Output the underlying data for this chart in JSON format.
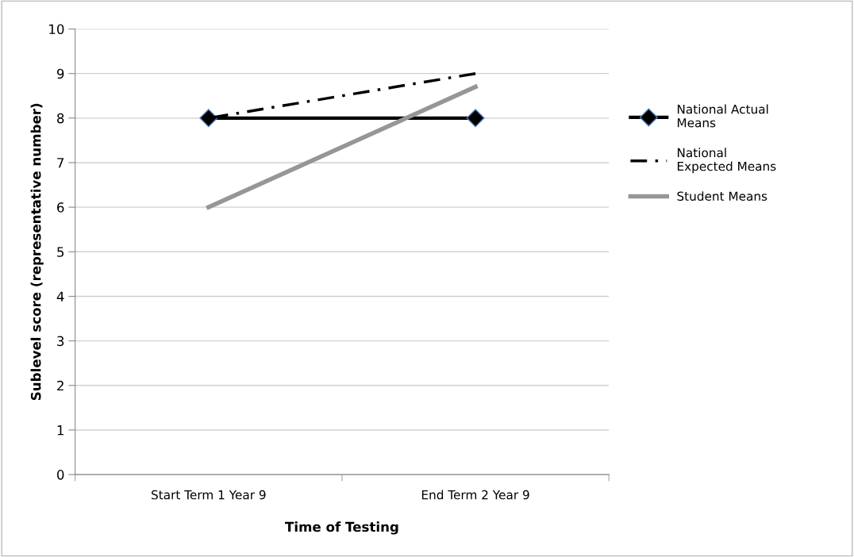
{
  "chart_data": {
    "type": "line",
    "xlabel": "Time of Testing",
    "ylabel": "Sublevel score (representative number)",
    "categories": [
      "Start Term 1 Year 9",
      "End Term 2 Year 9"
    ],
    "series": [
      {
        "name": "National Actual Means",
        "color": "#000000",
        "values": [
          8,
          8
        ],
        "marker": "diamond",
        "line_style": "solid"
      },
      {
        "name": "National Expected Means",
        "color": "#000000",
        "values": [
          8,
          9
        ],
        "marker": "none",
        "line_style": "dashdot"
      },
      {
        "name": "Student Means",
        "color": "#969696",
        "values": [
          6,
          8.7
        ],
        "marker": "none",
        "line_style": "solid"
      }
    ],
    "ylim": [
      0,
      10
    ],
    "yticks": [
      0,
      1,
      2,
      3,
      4,
      5,
      6,
      7,
      8,
      9,
      10
    ],
    "grid": "y",
    "legend": "right"
  }
}
